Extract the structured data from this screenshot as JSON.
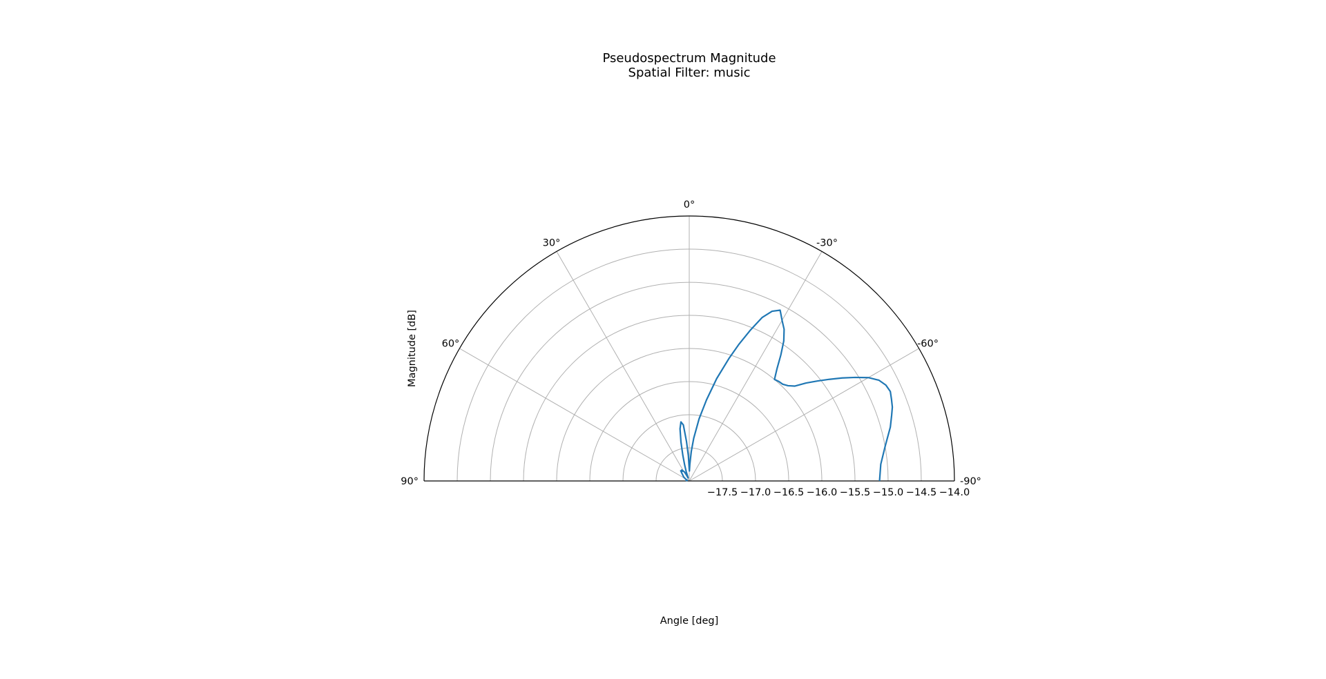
{
  "chart_data": {
    "type": "line",
    "projection": "polar-half",
    "title": "Pseudospectrum Magnitude",
    "subtitle": "Spatial Filter: music",
    "xlabel": "Angle [deg]",
    "ylabel": "Magnitude [dB]",
    "theta_range": [
      -90,
      90
    ],
    "theta_zero": "top",
    "theta_direction": "counterclockwise",
    "r_range": [
      -18.0,
      -14.0
    ],
    "angle_ticks": [
      -90,
      -60,
      -30,
      0,
      30,
      60,
      90
    ],
    "angle_tick_labels": [
      "-90°",
      "-60°",
      "-30°",
      "0°",
      "30°",
      "60°",
      "90°"
    ],
    "r_ticks": [
      -17.5,
      -17.0,
      -16.5,
      -16.0,
      -15.5,
      -15.0,
      -14.5,
      -14.0
    ],
    "r_tick_labels": [
      "−17.5",
      "−17.0",
      "−16.5",
      "−16.0",
      "−15.5",
      "−15.0",
      "−14.5",
      "−14.0"
    ],
    "grid": true,
    "legend": false,
    "series": [
      {
        "color": "#1f77b4",
        "theta": [
          -90,
          -85,
          -80,
          -75,
          -72,
          -70,
          -68,
          -66,
          -64,
          -62,
          -60,
          -58,
          -56,
          -54,
          -52,
          -50,
          -48,
          -46,
          -44,
          -42,
          -40,
          -38,
          -36,
          -34,
          -32,
          -30,
          -28,
          -26,
          -24,
          -22,
          -20,
          -18,
          -15,
          -12,
          -9,
          -6,
          -4,
          -2,
          -1,
          0,
          2,
          4,
          6,
          8,
          10,
          12,
          14,
          16,
          18,
          20,
          22,
          24,
          26,
          28,
          30,
          32,
          34,
          36,
          40,
          45,
          50,
          55,
          60,
          65,
          70,
          75,
          80,
          85,
          88,
          90
        ],
        "r": [
          -15.13,
          -15.1,
          -15.0,
          -14.86,
          -14.79,
          -14.74,
          -14.71,
          -14.68,
          -14.7,
          -14.76,
          -14.88,
          -15.05,
          -15.22,
          -15.39,
          -15.55,
          -15.7,
          -15.86,
          -15.93,
          -15.97,
          -15.98,
          -16.0,
          -15.85,
          -15.65,
          -15.45,
          -15.3,
          -15.2,
          -15.08,
          -15.15,
          -15.3,
          -15.55,
          -15.8,
          -16.05,
          -16.4,
          -16.75,
          -17.05,
          -17.35,
          -17.55,
          -17.75,
          -17.85,
          -17.82,
          -17.62,
          -17.4,
          -17.15,
          -17.1,
          -17.2,
          -17.4,
          -17.6,
          -17.75,
          -17.85,
          -17.95,
          -17.93,
          -17.9,
          -17.88,
          -17.85,
          -17.83,
          -17.82,
          -17.8,
          -17.82,
          -17.8,
          -17.85,
          -17.88,
          -17.9,
          -17.93,
          -17.95,
          -17.97,
          -17.97,
          -17.96,
          -17.95,
          -17.95,
          -17.95
        ]
      }
    ]
  }
}
